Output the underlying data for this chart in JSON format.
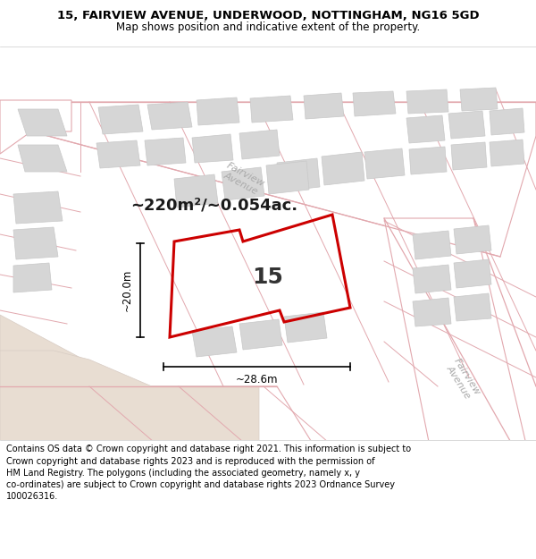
{
  "title_line1": "15, FAIRVIEW AVENUE, UNDERWOOD, NOTTINGHAM, NG16 5GD",
  "title_line2": "Map shows position and indicative extent of the property.",
  "footer_text": "Contains OS data © Crown copyright and database right 2021. This information is subject to Crown copyright and database rights 2023 and is reproduced with the permission of HM Land Registry. The polygons (including the associated geometry, namely x, y co-ordinates) are subject to Crown copyright and database rights 2023 Ordnance Survey 100026316.",
  "map_bg": "#efeeeb",
  "road_fill": "#ffffff",
  "road_edge": "#e2a8ae",
  "bld_fill": "#d6d6d6",
  "bld_edge": "#c8c8c8",
  "plot_color": "#cc0000",
  "tan_fill": "#e8ddd2",
  "area_text": "~220m²/~0.054ac.",
  "number_text": "15",
  "dim_v": "~20.0m",
  "dim_h": "~28.6m",
  "road_lbl1": "Fairview\nAvenue",
  "road_lbl2": "Fairview\nAvenue",
  "footer_bg": "#ffffff",
  "title_fontsize": 9.5,
  "subtitle_fontsize": 8.5,
  "footer_fontsize": 7.0
}
